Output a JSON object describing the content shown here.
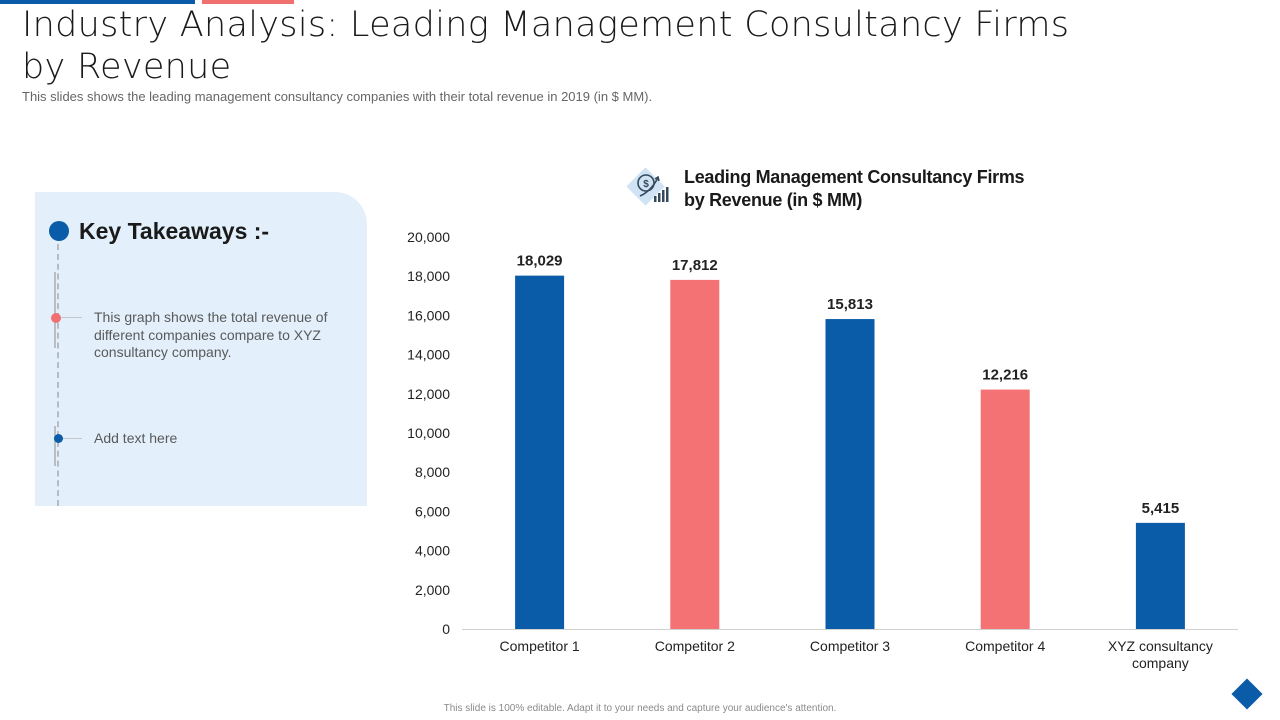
{
  "slide": {
    "title": "Industry Analysis: Leading Management Consultancy Firms by Revenue",
    "subtitle": "This slides shows the leading management consultancy companies with their total revenue in 2019 (in $ MM).",
    "footer": "This slide is 100% editable. Adapt it to your needs and capture your audience's attention."
  },
  "takeaways": {
    "title": "Key Takeaways :-",
    "items": [
      {
        "text": "This graph shows the total revenue of different companies compare to XYZ  consultancy company.",
        "bullet_color": "#f07070"
      },
      {
        "text": "Add text here",
        "bullet_color": "#0a5ca8"
      }
    ]
  },
  "colors": {
    "blue": "#0a5ca8",
    "coral": "#f47174",
    "panel": "#e3f0fb"
  },
  "icons": {
    "chart_icon": "money-growth-icon",
    "corner": "diamond-icon"
  },
  "chart_data": {
    "type": "bar",
    "title": "Leading Management Consultancy Firms by Revenue (in $ MM)",
    "categories": [
      "Competitor 1",
      "Competitor 2",
      "Competitor 3",
      "Competitor 4",
      "XYZ consultancy company"
    ],
    "values": [
      18029,
      17812,
      15813,
      12216,
      5415
    ],
    "value_labels": [
      "18,029",
      "17,812",
      "15,813",
      "12,216",
      "5,415"
    ],
    "bar_colors": [
      "#0a5ca8",
      "#f47174",
      "#0a5ca8",
      "#f47174",
      "#0a5ca8"
    ],
    "ylim": [
      0,
      20000
    ],
    "yticks": [
      0,
      2000,
      4000,
      6000,
      8000,
      10000,
      12000,
      14000,
      16000,
      18000,
      20000
    ],
    "ytick_labels": [
      "0",
      "2,000",
      "4,000",
      "6,000",
      "8,000",
      "10,000",
      "12,000",
      "14,000",
      "16,000",
      "18,000",
      "20,000"
    ],
    "xlabel": "",
    "ylabel": "",
    "grid": false,
    "legend": false
  }
}
